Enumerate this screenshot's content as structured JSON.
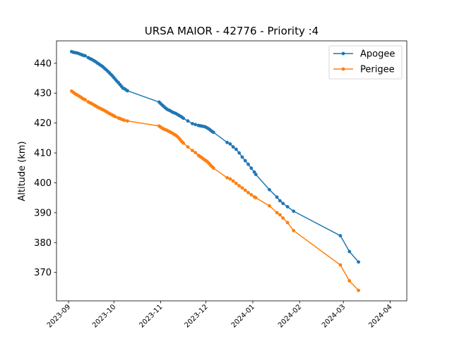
{
  "chart_data": {
    "type": "line",
    "title": "URSA MAIOR - 42776 - Priority :4",
    "xlabel": "",
    "ylabel": "Altitude (km)",
    "x_type": "date",
    "xlim": [
      "2023-08-24",
      "2024-04-12"
    ],
    "ylim": [
      360.5,
      447.5
    ],
    "xticks": [
      "2023-09-01",
      "2023-10-01",
      "2023-11-01",
      "2023-12-01",
      "2024-01-01",
      "2024-02-01",
      "2024-03-01",
      "2024-04-01"
    ],
    "xtick_labels": [
      "2023-09",
      "2023-10",
      "2023-11",
      "2023-12",
      "2024-01",
      "2024-02",
      "2024-03",
      "2024-04"
    ],
    "yticks": [
      370,
      380,
      390,
      400,
      410,
      420,
      430,
      440
    ],
    "ytick_labels": [
      "370",
      "380",
      "390",
      "400",
      "410",
      "420",
      "430",
      "440"
    ],
    "grid": false,
    "legend_position": "top-right",
    "series": [
      {
        "name": "Apogee",
        "color": "#1f77b4",
        "marker": "circle",
        "points": [
          [
            "2023-09-03",
            443.9
          ],
          [
            "2023-09-04",
            443.7
          ],
          [
            "2023-09-05",
            443.6
          ],
          [
            "2023-09-06",
            443.5
          ],
          [
            "2023-09-07",
            443.4
          ],
          [
            "2023-09-08",
            443.2
          ],
          [
            "2023-09-09",
            443.0
          ],
          [
            "2023-09-10",
            442.8
          ],
          [
            "2023-09-11",
            442.6
          ],
          [
            "2023-09-12",
            442.5
          ],
          [
            "2023-09-14",
            441.9
          ],
          [
            "2023-09-15",
            441.6
          ],
          [
            "2023-09-16",
            441.4
          ],
          [
            "2023-09-17",
            441.1
          ],
          [
            "2023-09-18",
            440.8
          ],
          [
            "2023-09-19",
            440.5
          ],
          [
            "2023-09-20",
            440.1
          ],
          [
            "2023-09-21",
            439.8
          ],
          [
            "2023-09-22",
            439.4
          ],
          [
            "2023-09-23",
            439.1
          ],
          [
            "2023-09-24",
            438.7
          ],
          [
            "2023-09-25",
            438.2
          ],
          [
            "2023-09-26",
            437.8
          ],
          [
            "2023-09-27",
            437.3
          ],
          [
            "2023-09-28",
            436.8
          ],
          [
            "2023-09-29",
            436.3
          ],
          [
            "2023-09-30",
            435.8
          ],
          [
            "2023-10-01",
            435.2
          ],
          [
            "2023-10-02",
            434.6
          ],
          [
            "2023-10-03",
            434.0
          ],
          [
            "2023-10-04",
            433.5
          ],
          [
            "2023-10-05",
            432.9
          ],
          [
            "2023-10-06",
            432.3
          ],
          [
            "2023-10-07",
            431.7
          ],
          [
            "2023-10-08",
            431.5
          ],
          [
            "2023-10-09",
            431.1
          ],
          [
            "2023-10-10",
            430.8
          ],
          [
            "2023-10-31",
            427.0
          ],
          [
            "2023-11-01",
            426.5
          ],
          [
            "2023-11-02",
            426.0
          ],
          [
            "2023-11-03",
            425.6
          ],
          [
            "2023-11-04",
            425.1
          ],
          [
            "2023-11-05",
            424.7
          ],
          [
            "2023-11-06",
            424.4
          ],
          [
            "2023-11-07",
            424.2
          ],
          [
            "2023-11-08",
            423.9
          ],
          [
            "2023-11-09",
            423.6
          ],
          [
            "2023-11-10",
            423.4
          ],
          [
            "2023-11-11",
            423.2
          ],
          [
            "2023-11-12",
            422.9
          ],
          [
            "2023-11-13",
            422.6
          ],
          [
            "2023-11-14",
            422.3
          ],
          [
            "2023-11-15",
            422.0
          ],
          [
            "2023-11-16",
            421.6
          ],
          [
            "2023-11-19",
            420.7
          ],
          [
            "2023-11-22",
            419.8
          ],
          [
            "2023-11-24",
            419.5
          ],
          [
            "2023-11-26",
            419.2
          ],
          [
            "2023-11-27",
            419.1
          ],
          [
            "2023-11-28",
            419.0
          ],
          [
            "2023-11-29",
            418.9
          ],
          [
            "2023-11-30",
            418.8
          ],
          [
            "2023-12-01",
            418.6
          ],
          [
            "2023-12-02",
            418.3
          ],
          [
            "2023-12-03",
            418.0
          ],
          [
            "2023-12-04",
            417.6
          ],
          [
            "2023-12-05",
            417.2
          ],
          [
            "2023-12-06",
            416.9
          ],
          [
            "2023-12-15",
            413.5
          ],
          [
            "2023-12-17",
            413.0
          ],
          [
            "2023-12-19",
            412.0
          ],
          [
            "2023-12-21",
            411.2
          ],
          [
            "2023-12-23",
            410.0
          ],
          [
            "2023-12-25",
            408.6
          ],
          [
            "2023-12-27",
            407.4
          ],
          [
            "2023-12-29",
            406.2
          ],
          [
            "2023-12-31",
            404.9
          ],
          [
            "2024-01-02",
            403.6
          ],
          [
            "2024-01-03",
            402.8
          ],
          [
            "2024-01-12",
            397.7
          ],
          [
            "2024-01-17",
            395.2
          ],
          [
            "2024-01-19",
            394.0
          ],
          [
            "2024-01-21",
            393.1
          ],
          [
            "2024-01-24",
            392.0
          ],
          [
            "2024-01-28",
            390.5
          ],
          [
            "2024-02-28",
            382.3
          ],
          [
            "2024-03-05",
            377.0
          ],
          [
            "2024-03-11",
            373.5
          ]
        ]
      },
      {
        "name": "Perigee",
        "color": "#ff7f0e",
        "marker": "circle",
        "points": [
          [
            "2023-09-03",
            430.7
          ],
          [
            "2023-09-04",
            430.3
          ],
          [
            "2023-09-05",
            429.9
          ],
          [
            "2023-09-06",
            429.6
          ],
          [
            "2023-09-07",
            429.3
          ],
          [
            "2023-09-08",
            429.0
          ],
          [
            "2023-09-09",
            428.7
          ],
          [
            "2023-09-10",
            428.3
          ],
          [
            "2023-09-11",
            428.0
          ],
          [
            "2023-09-12",
            427.8
          ],
          [
            "2023-09-14",
            427.1
          ],
          [
            "2023-09-15",
            426.8
          ],
          [
            "2023-09-16",
            426.6
          ],
          [
            "2023-09-17",
            426.3
          ],
          [
            "2023-09-18",
            426.0
          ],
          [
            "2023-09-19",
            425.7
          ],
          [
            "2023-09-20",
            425.4
          ],
          [
            "2023-09-21",
            425.1
          ],
          [
            "2023-09-22",
            424.9
          ],
          [
            "2023-09-23",
            424.6
          ],
          [
            "2023-09-24",
            424.4
          ],
          [
            "2023-09-25",
            424.1
          ],
          [
            "2023-09-26",
            423.8
          ],
          [
            "2023-09-27",
            423.5
          ],
          [
            "2023-09-28",
            423.2
          ],
          [
            "2023-09-29",
            422.9
          ],
          [
            "2023-09-30",
            422.7
          ],
          [
            "2023-10-01",
            422.4
          ],
          [
            "2023-10-02",
            422.1
          ],
          [
            "2023-10-04",
            421.7
          ],
          [
            "2023-10-05",
            421.5
          ],
          [
            "2023-10-06",
            421.3
          ],
          [
            "2023-10-07",
            421.1
          ],
          [
            "2023-10-08",
            420.9
          ],
          [
            "2023-10-10",
            420.7
          ],
          [
            "2023-10-31",
            419.0
          ],
          [
            "2023-11-01",
            418.6
          ],
          [
            "2023-11-02",
            418.3
          ],
          [
            "2023-11-03",
            418.0
          ],
          [
            "2023-11-04",
            417.8
          ],
          [
            "2023-11-05",
            417.6
          ],
          [
            "2023-11-06",
            417.3
          ],
          [
            "2023-11-07",
            417.1
          ],
          [
            "2023-11-08",
            416.8
          ],
          [
            "2023-11-09",
            416.5
          ],
          [
            "2023-11-10",
            416.2
          ],
          [
            "2023-11-11",
            415.9
          ],
          [
            "2023-11-12",
            415.5
          ],
          [
            "2023-11-13",
            415.0
          ],
          [
            "2023-11-14",
            414.4
          ],
          [
            "2023-11-15",
            413.8
          ],
          [
            "2023-11-16",
            413.3
          ],
          [
            "2023-11-19",
            412.0
          ],
          [
            "2023-11-22",
            410.8
          ],
          [
            "2023-11-24",
            410.1
          ],
          [
            "2023-11-26",
            409.2
          ],
          [
            "2023-11-27",
            408.8
          ],
          [
            "2023-11-28",
            408.5
          ],
          [
            "2023-11-29",
            408.1
          ],
          [
            "2023-11-30",
            407.7
          ],
          [
            "2023-12-01",
            407.4
          ],
          [
            "2023-12-02",
            407.0
          ],
          [
            "2023-12-03",
            406.5
          ],
          [
            "2023-12-04",
            405.9
          ],
          [
            "2023-12-05",
            405.4
          ],
          [
            "2023-12-06",
            404.9
          ],
          [
            "2023-12-15",
            401.7
          ],
          [
            "2023-12-17",
            401.3
          ],
          [
            "2023-12-19",
            400.6
          ],
          [
            "2023-12-21",
            399.8
          ],
          [
            "2023-12-23",
            399.0
          ],
          [
            "2023-12-25",
            398.3
          ],
          [
            "2023-12-27",
            397.5
          ],
          [
            "2023-12-29",
            396.7
          ],
          [
            "2023-12-31",
            396.0
          ],
          [
            "2024-01-02",
            395.3
          ],
          [
            "2024-01-03",
            395.0
          ],
          [
            "2024-01-12",
            392.3
          ],
          [
            "2024-01-17",
            390.0
          ],
          [
            "2024-01-19",
            389.3
          ],
          [
            "2024-01-21",
            388.2
          ],
          [
            "2024-01-24",
            386.7
          ],
          [
            "2024-01-28",
            384.0
          ],
          [
            "2024-02-28",
            372.5
          ],
          [
            "2024-03-05",
            367.2
          ],
          [
            "2024-03-11",
            364.0
          ]
        ]
      }
    ]
  }
}
